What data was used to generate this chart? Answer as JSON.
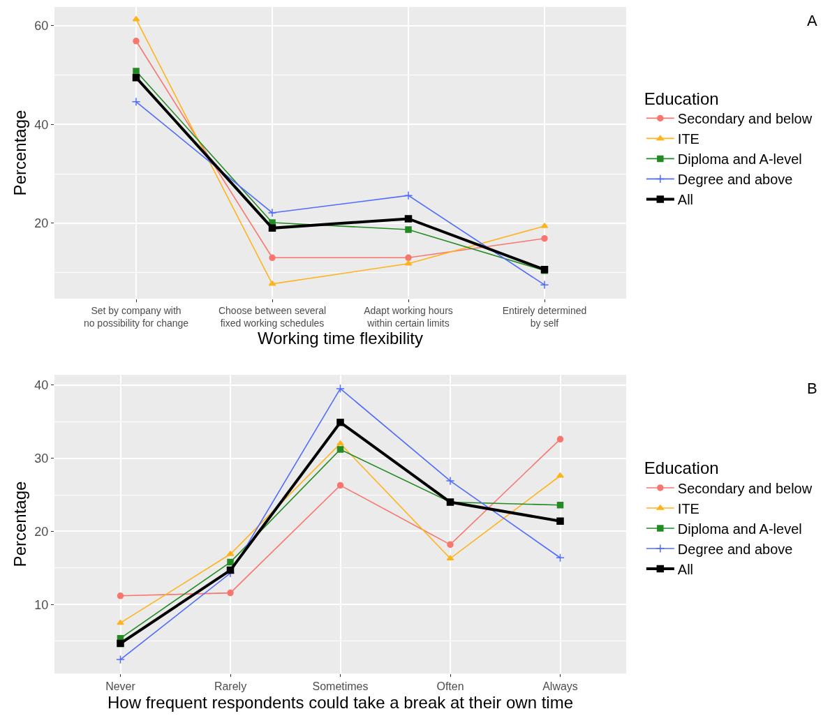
{
  "chart_data": [
    {
      "type": "line",
      "xlabel": "Working time flexibility",
      "ylabel": "Percentage",
      "legend_title": "Education",
      "legend": "right",
      "grid": true,
      "annotations": [
        "A"
      ],
      "categories": [
        "Set by company with\nno possibility for change",
        "Choose between several\nfixed working schedules",
        "Adapt working hours\nwithin certain limits",
        "Entirely determined\nby self"
      ],
      "ylim": [
        4.7,
        63.8
      ],
      "yticks": [
        20,
        40,
        60
      ],
      "series": [
        {
          "name": "Secondary and below",
          "color": "#f8766d",
          "marker": "circle",
          "values": [
            56.9,
            13.0,
            13.0,
            16.9
          ]
        },
        {
          "name": "ITE",
          "color": "#ffb31a",
          "marker": "triangle",
          "values": [
            61.3,
            7.7,
            11.8,
            19.4
          ]
        },
        {
          "name": "Diploma and A-level",
          "color": "#228b22",
          "marker": "square",
          "values": [
            50.8,
            20.1,
            18.7,
            10.4
          ]
        },
        {
          "name": "Degree and above",
          "color": "#4f6bff",
          "marker": "cross",
          "values": [
            44.6,
            22.1,
            25.6,
            7.5
          ]
        },
        {
          "name": "All",
          "color": "#000000",
          "marker": "square",
          "values": [
            49.5,
            19.0,
            20.9,
            10.6
          ]
        }
      ]
    },
    {
      "type": "line",
      "xlabel": "How frequent respondents could take a break at their own time",
      "ylabel": "Percentage",
      "legend_title": "Education",
      "legend": "right",
      "grid": true,
      "annotations": [
        "B"
      ],
      "categories": [
        "Never",
        "Rarely",
        "Sometimes",
        "Often",
        "Always"
      ],
      "ylim": [
        0.6,
        41.4
      ],
      "yticks": [
        10,
        20,
        30,
        40
      ],
      "series": [
        {
          "name": "Secondary and below",
          "color": "#f8766d",
          "marker": "circle",
          "values": [
            11.2,
            11.6,
            26.3,
            18.2,
            32.6
          ]
        },
        {
          "name": "ITE",
          "color": "#ffb31a",
          "marker": "triangle",
          "values": [
            7.5,
            16.9,
            32.0,
            16.3,
            27.6
          ]
        },
        {
          "name": "Diploma and A-level",
          "color": "#228b22",
          "marker": "square",
          "values": [
            5.4,
            15.8,
            31.2,
            24.0,
            23.6
          ]
        },
        {
          "name": "Degree and above",
          "color": "#4f6bff",
          "marker": "cross",
          "values": [
            2.5,
            14.3,
            39.5,
            26.9,
            16.4
          ]
        },
        {
          "name": "All",
          "color": "#000000",
          "marker": "square",
          "values": [
            4.7,
            14.7,
            34.9,
            24.0,
            21.4
          ]
        }
      ]
    }
  ]
}
